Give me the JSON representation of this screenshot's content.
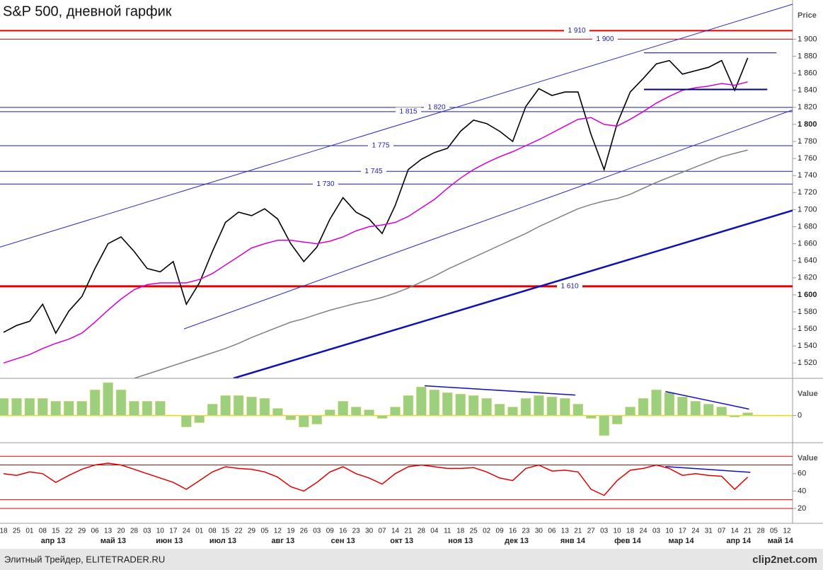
{
  "footer": {
    "left": "Элитный Трейдер, ELITETRADER.RU",
    "right": "clip2net.com"
  },
  "chart_data": [
    {
      "type": "line",
      "title": "S&P 500, дневной гарфик",
      "y_label": "Price",
      "categories": [
        "18",
        "25",
        "01",
        "08",
        "15",
        "22",
        "29",
        "06",
        "13",
        "20",
        "28",
        "03",
        "10",
        "17",
        "24",
        "01",
        "08",
        "15",
        "22",
        "29",
        "05",
        "12",
        "19",
        "26",
        "03",
        "09",
        "16",
        "23",
        "30",
        "07",
        "14",
        "21",
        "28",
        "04",
        "11",
        "18",
        "25",
        "02",
        "09",
        "16",
        "23",
        "30",
        "06",
        "13",
        "21",
        "27",
        "03",
        "10",
        "18",
        "24",
        "03",
        "10",
        "17",
        "24",
        "31",
        "07",
        "14",
        "21",
        "28",
        "05",
        "12"
      ],
      "months": [
        "апр 13",
        "май 13",
        "июн 13",
        "июл 13",
        "авг 13",
        "сен 13",
        "окт 13",
        "ноя 13",
        "дек 13",
        "янв 14",
        "фев 14",
        "мар 14",
        "апр 14",
        "май 14"
      ],
      "ylim": [
        1502,
        1946
      ],
      "yticks": [
        {
          "value": 1520,
          "label": "1 520"
        },
        {
          "value": 1540,
          "label": "1 540"
        },
        {
          "value": 1560,
          "label": "1 560"
        },
        {
          "value": 1580,
          "label": "1 580"
        },
        {
          "value": 1600,
          "label": "1 600"
        },
        {
          "value": 1620,
          "label": "1 620"
        },
        {
          "value": 1640,
          "label": "1 640"
        },
        {
          "value": 1660,
          "label": "1 660"
        },
        {
          "value": 1680,
          "label": "1 680"
        },
        {
          "value": 1700,
          "label": "1 700"
        },
        {
          "value": 1720,
          "label": "1 720"
        },
        {
          "value": 1740,
          "label": "1 740"
        },
        {
          "value": 1760,
          "label": "1 760"
        },
        {
          "value": 1780,
          "label": "1 780"
        },
        {
          "value": 1800,
          "label": "1 800"
        },
        {
          "value": 1820,
          "label": "1 820"
        },
        {
          "value": 1840,
          "label": "1 840"
        },
        {
          "value": 1860,
          "label": "1 860"
        },
        {
          "value": 1880,
          "label": "1 880"
        },
        {
          "value": 1900,
          "label": "1 900"
        }
      ],
      "series": [
        {
          "color": "#000000",
          "values": [
            1556,
            1564,
            1569,
            1589,
            1555,
            1581,
            1598,
            1631,
            1660,
            1668,
            1651,
            1631,
            1627,
            1639,
            1589,
            1614,
            1651,
            1685,
            1697,
            1693,
            1701,
            1689,
            1660,
            1639,
            1656,
            1689,
            1714,
            1697,
            1689,
            1672,
            1705,
            1747,
            1759,
            1767,
            1772,
            1792,
            1805,
            1801,
            1792,
            1780,
            1821,
            1842,
            1834,
            1838,
            1838,
            1788,
            1747,
            1801,
            1838,
            1854,
            1871,
            1875,
            1859,
            1863,
            1867,
            1875,
            1840,
            1878,
            null,
            null,
            null
          ]
        },
        {
          "color": "#d400d4",
          "values": [
            1520,
            1525,
            1530,
            1537,
            1543,
            1548,
            1555,
            1568,
            1582,
            1595,
            1606,
            1612,
            1614,
            1614,
            1614,
            1618,
            1625,
            1635,
            1645,
            1655,
            1660,
            1664,
            1664,
            1662,
            1660,
            1663,
            1668,
            1675,
            1680,
            1682,
            1685,
            1692,
            1702,
            1712,
            1725,
            1737,
            1747,
            1755,
            1762,
            1768,
            1775,
            1782,
            1790,
            1798,
            1806,
            1808,
            1800,
            1798,
            1806,
            1815,
            1825,
            1833,
            1840,
            1843,
            1845,
            1848,
            1846,
            1850,
            null,
            null,
            null
          ]
        },
        {
          "color": "#808080",
          "values": [
            null,
            null,
            null,
            null,
            null,
            null,
            null,
            null,
            null,
            null,
            1502,
            1507,
            1512,
            1517,
            1522,
            1527,
            1532,
            1537,
            1543,
            1550,
            1556,
            1562,
            1568,
            1572,
            1577,
            1582,
            1586,
            1590,
            1593,
            1597,
            1602,
            1608,
            1615,
            1622,
            1630,
            1637,
            1644,
            1651,
            1658,
            1665,
            1672,
            1680,
            1687,
            1694,
            1701,
            1706,
            1710,
            1713,
            1718,
            1725,
            1732,
            1738,
            1744,
            1750,
            1756,
            1762,
            1766,
            1770,
            null,
            null,
            null
          ]
        }
      ],
      "levels": [
        {
          "value": 1910,
          "label": "1 910",
          "color": "#e00000",
          "width": 2
        },
        {
          "value": 1900,
          "label": "1 900",
          "color": "#e00000",
          "width": 1
        },
        {
          "value": 1820,
          "label": "1 820",
          "color": "#1a1ab0",
          "width": 1
        },
        {
          "value": 1815,
          "label": "1 815",
          "color": "#1a1ab0",
          "width": 1
        },
        {
          "value": 1775,
          "label": "1 775",
          "color": "#1a1ab0",
          "width": 1
        },
        {
          "value": 1745,
          "label": "1 745",
          "color": "#1a1ab0",
          "width": 1
        },
        {
          "value": 1730,
          "label": "1 730",
          "color": "#1a1ab0",
          "width": 1
        },
        {
          "value": 1610,
          "label": "1 610",
          "color": "#e00000",
          "width": 3
        }
      ],
      "lines": [
        {
          "x": [
            -0.27,
            60.43
          ],
          "y": [
            1656,
            1941
          ],
          "color": "#2a2ac0",
          "width": 1
        },
        {
          "x": [
            13.82,
            60.43
          ],
          "y": [
            1560,
            1817
          ],
          "color": "#2a2ac0",
          "width": 1
        },
        {
          "x": [
            17.6,
            60.43
          ],
          "y": [
            1502,
            1699
          ],
          "color": "#1010b0",
          "width": 2.5
        },
        {
          "x": [
            49.05,
            59.2
          ],
          "y": [
            1884,
            1884
          ],
          "color": "#000060",
          "width": 1
        },
        {
          "x": [
            49.05,
            58.5
          ],
          "y": [
            1841,
            1841
          ],
          "color": "#000080",
          "width": 2
        }
      ]
    },
    {
      "type": "bar",
      "y_label": "Value",
      "ylim": [
        -17,
        25
      ],
      "yticks": [
        0
      ],
      "color": "#9ccf7e",
      "values": [
        12,
        12,
        12,
        12,
        10,
        10,
        10,
        18,
        23,
        18,
        10,
        10,
        10,
        0,
        -8,
        -5,
        8,
        14,
        14,
        13,
        12,
        5,
        -3,
        -8,
        -6,
        4,
        10,
        6,
        4,
        -2,
        6,
        14,
        20,
        18,
        16,
        15,
        14,
        12,
        8,
        6,
        12,
        14,
        13,
        12,
        8,
        -2,
        -14,
        -6,
        6,
        12,
        18,
        16,
        13,
        10,
        8,
        6,
        -1,
        2,
        null,
        null,
        null
      ],
      "lines": [
        {
          "x": [
            32.25,
            43.8
          ],
          "y": [
            20.8,
            14.3
          ],
          "color": "#1010c0",
          "width": 1.5
        },
        {
          "x": [
            50.7,
            57.1
          ],
          "y": [
            16.8,
            4.5
          ],
          "color": "#1010c0",
          "width": 1.5
        }
      ]
    },
    {
      "type": "line",
      "y_label": "Value",
      "ylim": [
        11,
        94
      ],
      "yticks": [
        20,
        40,
        60
      ],
      "series": [
        {
          "color": "#e00000",
          "values": [
            60,
            58,
            62,
            60,
            50,
            58,
            65,
            70,
            72,
            70,
            65,
            60,
            55,
            50,
            42,
            52,
            62,
            68,
            66,
            65,
            62,
            56,
            45,
            40,
            50,
            62,
            68,
            60,
            55,
            48,
            60,
            68,
            70,
            68,
            66,
            66,
            67,
            62,
            55,
            52,
            66,
            70,
            63,
            64,
            62,
            42,
            35,
            52,
            64,
            66,
            70,
            66,
            58,
            60,
            58,
            57,
            42,
            56,
            null,
            null,
            null
          ]
        }
      ],
      "levels": [
        {
          "value": 80,
          "color": "#e00000",
          "width": 1
        },
        {
          "value": 70,
          "color": "#e00000",
          "width": 1
        },
        {
          "value": 30,
          "color": "#e00000",
          "width": 1
        },
        {
          "value": 20,
          "color": "#e00000",
          "width": 1
        }
      ],
      "lines": [
        {
          "x": [
            50.7,
            57.2
          ],
          "y": [
            68.2,
            61.6
          ],
          "color": "#1010c0",
          "width": 1.5
        }
      ]
    }
  ]
}
